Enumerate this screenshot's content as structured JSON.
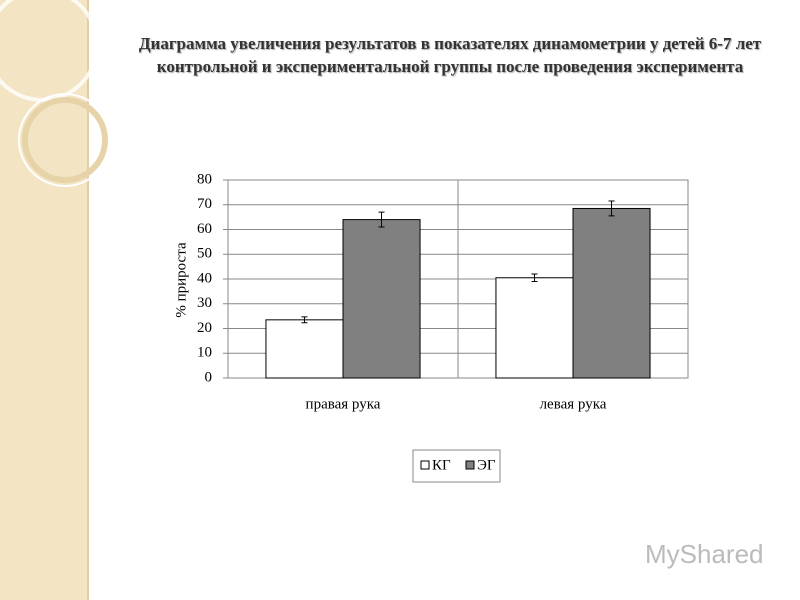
{
  "chart_data": {
    "type": "bar",
    "title": "Диаграмма увеличения результатов в показателях динамометрии у детей 6-7 лет контрольной и экспериментальной группы после проведения эксперимента",
    "y_label": "% прироста",
    "categories": [
      "правая рука",
      "левая рука"
    ],
    "series": [
      {
        "name": "КГ",
        "color": "#ffffff",
        "values": [
          23.5,
          40.5
        ],
        "errors": [
          1.2,
          1.5
        ]
      },
      {
        "name": "ЭГ",
        "color": "#808080",
        "values": [
          64,
          68.5
        ],
        "errors": [
          3,
          3
        ]
      }
    ],
    "ylim": [
      0,
      80
    ],
    "yticks": [
      0,
      10,
      20,
      30,
      40,
      50,
      60,
      70,
      80
    ],
    "grid": true,
    "legend": "bottom",
    "watermark": "MyShared"
  }
}
